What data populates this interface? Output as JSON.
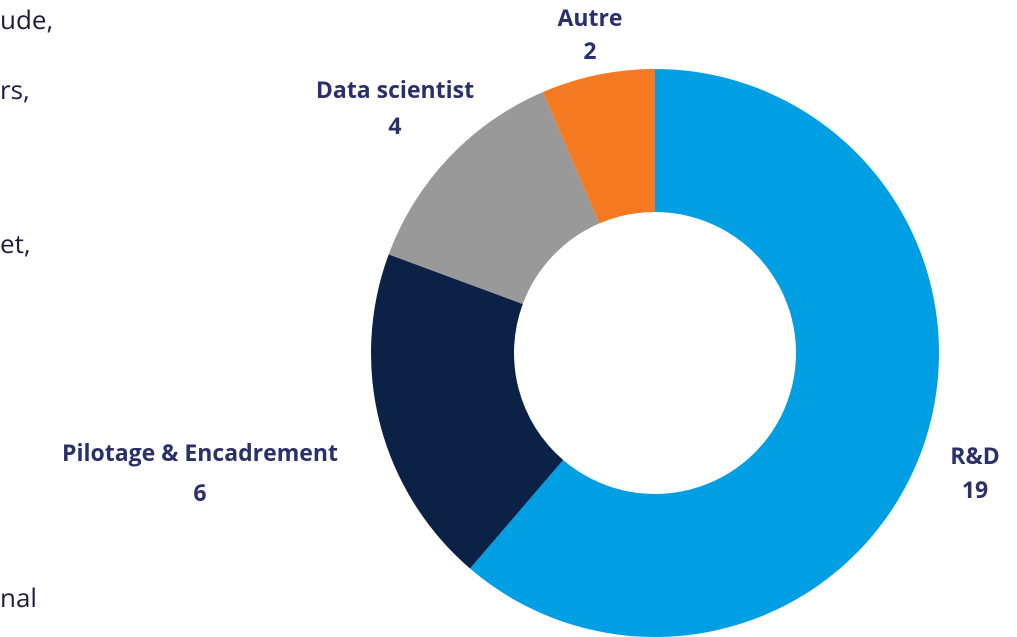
{
  "body_text": [
    "ude,",
    "rs,",
    "et,",
    "nal"
  ],
  "chart_data": {
    "type": "donut",
    "categories": [
      "R&D",
      "Pilotage & Encadrement",
      "Data scientist",
      "Autre"
    ],
    "values": [
      19,
      6,
      4,
      2
    ],
    "colors": [
      "#009fe3",
      "#0c2146",
      "#999999",
      "#f47920"
    ]
  }
}
